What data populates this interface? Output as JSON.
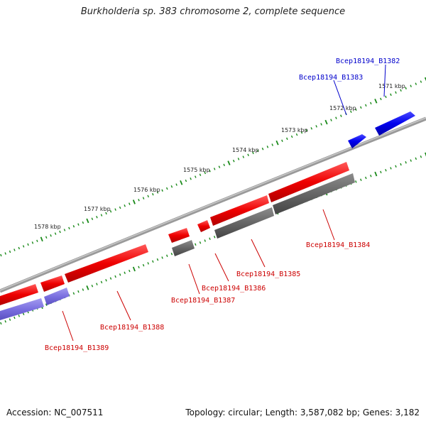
{
  "title": "Burkholderia sp. 383 chromosome 2, complete sequence",
  "footer": {
    "accession_label": "Accession:",
    "accession": "NC_007511",
    "topology_label": "Topology:",
    "topology": "circular",
    "length_label": "Length:",
    "length": "3,587,082 bp",
    "genes_label": "Genes:",
    "genes": "3,182"
  },
  "colors": {
    "backbone": "#8a8a8a",
    "tick_dots": "#1a8a1a",
    "forward_cds": "#0000ee",
    "reverse_cds": "#ee0000",
    "rna_gray": "#666666",
    "lavender": "#7a6fe0"
  },
  "kbp_scale": [
    "1571 kbp",
    "1572 kbp",
    "1573 kbp",
    "1574 kbp",
    "1575 kbp",
    "1576 kbp",
    "1577 kbp",
    "1578 kbp"
  ],
  "genes": [
    {
      "label": "Bcep18194_B1382",
      "strand": "forward",
      "color": "blue"
    },
    {
      "label": "Bcep18194_B1383",
      "strand": "forward",
      "color": "blue"
    },
    {
      "label": "Bcep18194_B1384",
      "strand": "reverse",
      "color": "red"
    },
    {
      "label": "Bcep18194_B1385",
      "strand": "reverse",
      "color": "red"
    },
    {
      "label": "Bcep18194_B1386",
      "strand": "reverse",
      "color": "red"
    },
    {
      "label": "Bcep18194_B1387",
      "strand": "reverse",
      "color": "red"
    },
    {
      "label": "Bcep18194_B1388",
      "strand": "reverse",
      "color": "red"
    },
    {
      "label": "Bcep18194_B1389",
      "strand": "reverse",
      "color": "red"
    }
  ]
}
